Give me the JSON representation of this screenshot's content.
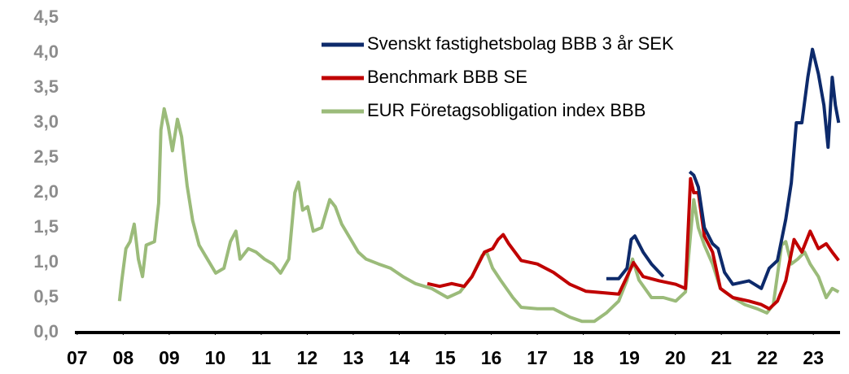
{
  "chart_data": {
    "type": "line",
    "legend": "upper center",
    "grid": false,
    "xlim": [
      6.95,
      23.58
    ],
    "ylim": [
      0,
      4.5
    ],
    "xticks": [
      {
        "value": 7,
        "label": "07"
      },
      {
        "value": 8,
        "label": "08"
      },
      {
        "value": 9,
        "label": "09"
      },
      10,
      11,
      12,
      13,
      14,
      15,
      16,
      17,
      18,
      19,
      20,
      21,
      22,
      23
    ],
    "yticks": [
      {
        "value": 0,
        "label": "0,0"
      },
      {
        "value": 0.5,
        "label": "0,5"
      },
      {
        "value": 1,
        "label": "1,0"
      },
      {
        "value": 1.5,
        "label": "1,5"
      },
      {
        "value": 2,
        "label": "2,0"
      },
      {
        "value": 2.5,
        "label": "2,5"
      },
      {
        "value": 3,
        "label": "3,0"
      },
      {
        "value": 3.5,
        "label": "3,5"
      },
      {
        "value": 4,
        "label": "4,0"
      },
      {
        "value": 4.5,
        "label": "4,5"
      }
    ],
    "series": [
      {
        "name": "Svenskt fastighetsbolag BBB 3 år SEK",
        "color": "#0d2a6b",
        "x": [
          18.5,
          18.77,
          18.95,
          19.04,
          19.12,
          19.3,
          19.48,
          19.74,
          20.0,
          20.31,
          20.4,
          20.5,
          20.63,
          20.81,
          20.93,
          21.07,
          21.25,
          21.6,
          21.87,
          22.04,
          22.22,
          22.4,
          22.52,
          22.63,
          22.75,
          22.88,
          22.98,
          23.11,
          23.23,
          23.32,
          23.41,
          23.48,
          23.55
        ],
        "values": [
          0.77,
          0.77,
          0.92,
          1.33,
          1.38,
          1.15,
          0.98,
          0.8,
          null,
          2.3,
          2.25,
          2.08,
          1.5,
          1.27,
          1.2,
          0.86,
          0.69,
          0.74,
          0.63,
          0.92,
          1.03,
          1.62,
          2.14,
          3.0,
          3.0,
          3.65,
          4.05,
          3.7,
          3.25,
          2.65,
          3.65,
          3.25,
          3.0
        ]
      },
      {
        "name": "Benchmark BBB SE",
        "color": "#c00000",
        "x": [
          14.61,
          14.88,
          15.14,
          15.41,
          15.58,
          15.85,
          16.03,
          16.15,
          16.26,
          16.38,
          16.65,
          17.0,
          17.35,
          17.71,
          18.06,
          18.42,
          18.77,
          18.95,
          19.09,
          19.3,
          19.65,
          20.01,
          20.22,
          20.33,
          20.4,
          20.5,
          20.63,
          20.81,
          20.98,
          21.25,
          21.6,
          21.87,
          22.04,
          22.22,
          22.4,
          22.58,
          22.75,
          22.93,
          23.11,
          23.28,
          23.41,
          23.55
        ],
        "values": [
          0.7,
          0.66,
          0.7,
          0.66,
          0.8,
          1.15,
          1.2,
          1.33,
          1.4,
          1.27,
          1.03,
          0.98,
          0.86,
          0.69,
          0.59,
          0.57,
          0.55,
          0.8,
          1.0,
          0.8,
          0.74,
          0.69,
          0.63,
          2.2,
          2.0,
          2.0,
          1.38,
          1.15,
          0.63,
          0.5,
          0.45,
          0.4,
          0.34,
          0.45,
          0.74,
          1.33,
          1.15,
          1.45,
          1.2,
          1.27,
          1.15,
          1.03
        ]
      },
      {
        "name": "EUR Företagsobligation index BBB",
        "color": "#9bbb7a",
        "x": [
          7.92,
          7.97,
          8.06,
          8.15,
          8.24,
          8.33,
          8.42,
          8.5,
          8.68,
          8.77,
          8.82,
          8.89,
          8.98,
          9.07,
          9.18,
          9.27,
          9.39,
          9.51,
          9.65,
          9.83,
          10.01,
          10.19,
          10.33,
          10.45,
          10.54,
          10.72,
          10.89,
          11.07,
          11.25,
          11.42,
          11.6,
          11.73,
          11.81,
          11.9,
          12.01,
          12.13,
          12.31,
          12.49,
          12.61,
          12.75,
          12.93,
          13.11,
          13.28,
          13.55,
          13.81,
          14.08,
          14.35,
          14.7,
          15.05,
          15.32,
          15.58,
          15.8,
          15.9,
          16.03,
          16.2,
          16.47,
          16.65,
          17.0,
          17.35,
          17.71,
          17.97,
          18.24,
          18.5,
          18.77,
          18.95,
          19.07,
          19.21,
          19.48,
          19.74,
          20.01,
          20.22,
          20.33,
          20.4,
          20.5,
          20.63,
          20.81,
          20.98,
          21.25,
          21.51,
          21.78,
          21.99,
          22.13,
          22.31,
          22.4,
          22.52,
          22.66,
          22.81,
          22.93,
          23.11,
          23.28,
          23.41,
          23.55
        ],
        "values": [
          0.45,
          0.75,
          1.2,
          1.3,
          1.55,
          1.05,
          0.8,
          1.25,
          1.3,
          1.85,
          2.9,
          3.2,
          2.95,
          2.6,
          3.05,
          2.8,
          2.1,
          1.6,
          1.25,
          1.05,
          0.85,
          0.92,
          1.3,
          1.45,
          1.05,
          1.2,
          1.15,
          1.05,
          0.98,
          0.85,
          1.05,
          2.0,
          2.15,
          1.75,
          1.8,
          1.45,
          1.5,
          1.9,
          1.8,
          1.55,
          1.35,
          1.15,
          1.05,
          0.98,
          0.92,
          0.8,
          0.7,
          0.63,
          0.5,
          0.58,
          0.8,
          1.1,
          1.15,
          0.92,
          0.75,
          0.5,
          0.36,
          0.34,
          0.34,
          0.22,
          0.16,
          0.16,
          0.28,
          0.45,
          0.75,
          1.05,
          0.75,
          0.5,
          0.5,
          0.45,
          0.58,
          1.4,
          1.9,
          1.5,
          1.25,
          0.98,
          0.63,
          0.5,
          0.4,
          0.34,
          0.28,
          0.4,
          1.25,
          1.3,
          0.98,
          1.05,
          1.15,
          0.98,
          0.8,
          0.5,
          0.63,
          0.58
        ]
      }
    ]
  }
}
